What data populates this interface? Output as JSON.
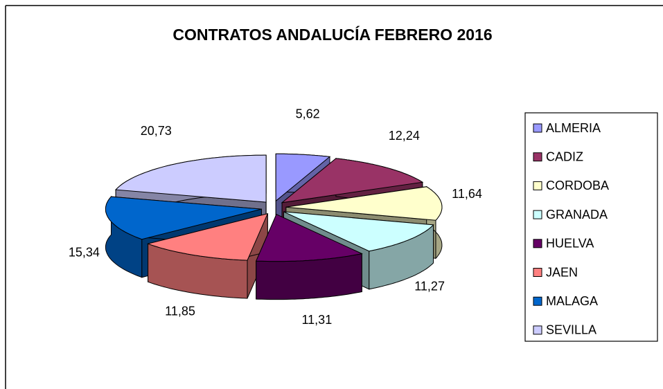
{
  "chart_data": {
    "type": "pie3d",
    "title": "CONTRATOS ANDALUCÍA FEBRERO 2016",
    "categories": [
      "ALMERIA",
      "CADIZ",
      "CORDOBA",
      "GRANADA",
      "HUELVA",
      "JAEN",
      "MALAGA",
      "SEVILLA"
    ],
    "values": [
      5.62,
      12.24,
      11.64,
      11.27,
      11.31,
      11.85,
      15.34,
      20.73
    ],
    "value_labels": [
      "5,62",
      "12,24",
      "11,64",
      "11,27",
      "11,31",
      "11,85",
      "15,34",
      "20,73"
    ],
    "colors": [
      "#9999ff",
      "#993366",
      "#ffffcc",
      "#ccffff",
      "#660066",
      "#ff8080",
      "#0066cc",
      "#ccccff"
    ],
    "legend": "right"
  }
}
